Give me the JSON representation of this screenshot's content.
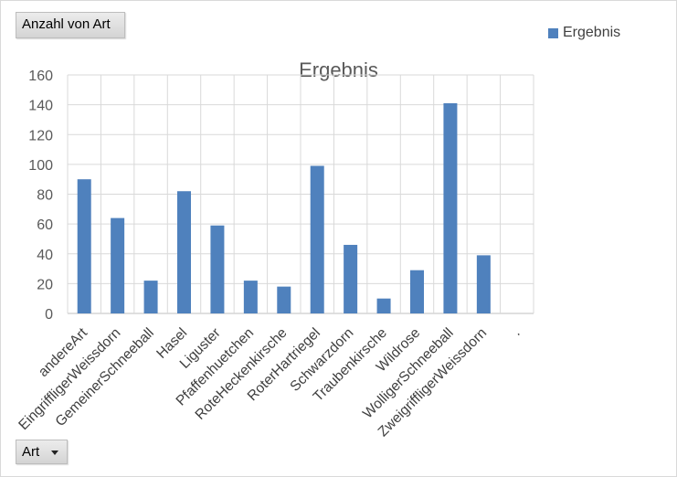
{
  "pivot": {
    "values_field": "Anzahl von Art",
    "axis_field": "Art"
  },
  "legend": {
    "label": "Ergebnis",
    "color": "#4f81bd"
  },
  "chart_data": {
    "type": "bar",
    "title": "Ergebnis",
    "xlabel": "",
    "ylabel": "",
    "ylim": [
      0,
      160
    ],
    "yticks": [
      0,
      20,
      40,
      60,
      80,
      100,
      120,
      140,
      160
    ],
    "grid": true,
    "legend_position": "top-right",
    "categories": [
      "andereArt",
      "EingriffligerWeissdorn",
      "GemeinerSchneeball",
      "Hasel",
      "Liguster",
      "Pfaffenhuetchen",
      "RoteHeckenkirsche",
      "RoterHartriegel",
      "Schwarzdorn",
      "Traubenkirsche",
      "Wildrose",
      "WolligerSchneeball",
      "ZweigriffligerWeissdorn",
      "."
    ],
    "series": [
      {
        "name": "Ergebnis",
        "color": "#4f81bd",
        "values": [
          90,
          64,
          22,
          82,
          59,
          22,
          18,
          99,
          46,
          10,
          29,
          141,
          39,
          0
        ]
      }
    ]
  }
}
